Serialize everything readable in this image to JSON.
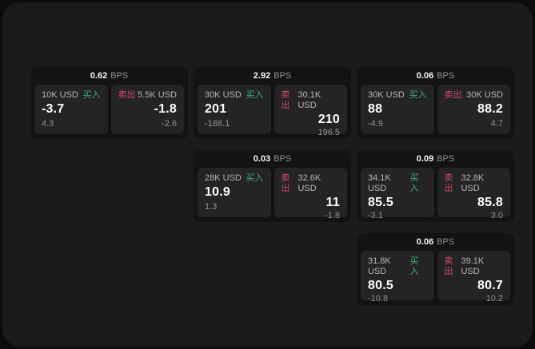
{
  "labels": {
    "buy": "买入",
    "sell": "卖出"
  },
  "colors": {
    "outer_bg": "#0c0c0c",
    "window_bg": "#1b1b1d",
    "card_bg": "#131314",
    "panel_bg": "#242427",
    "buy_green": "#3fae76",
    "sell_red": "#d14b62",
    "value_white": "#f5f5f5",
    "label_gray": "#b5b5b5",
    "sub_gray": "#8f8f8f"
  },
  "cards": [
    {
      "bps": "0.62",
      "unit": "BPS",
      "buy": {
        "amount": "10K USD",
        "value": "-3.7",
        "sub": "4.3"
      },
      "sell": {
        "amount": "5.5K USD",
        "value": "-1.8",
        "sub": "-2.6"
      }
    },
    {
      "bps": "2.92",
      "unit": "BPS",
      "buy": {
        "amount": "30K USD",
        "value": "201",
        "sub": "-188.1"
      },
      "sell": {
        "amount": "30.1K USD",
        "value": "210",
        "sub": "196.5"
      }
    },
    {
      "bps": "0.06",
      "unit": "BPS",
      "buy": {
        "amount": "30K USD",
        "value": "88",
        "sub": "-4.9"
      },
      "sell": {
        "amount": "30K USD",
        "value": "88.2",
        "sub": "4.7"
      }
    },
    {
      "bps": "0.03",
      "unit": "BPS",
      "buy": {
        "amount": "28K USD",
        "value": "10.9",
        "sub": "1.3"
      },
      "sell": {
        "amount": "32.6K USD",
        "value": "11",
        "sub": "-1.8"
      }
    },
    {
      "bps": "0.09",
      "unit": "BPS",
      "buy": {
        "amount": "34.1K USD",
        "value": "85.5",
        "sub": "-3.1"
      },
      "sell": {
        "amount": "32.8K USD",
        "value": "85.8",
        "sub": "3.0"
      }
    },
    {
      "bps": "0.06",
      "unit": "BPS",
      "buy": {
        "amount": "31.8K USD",
        "value": "80.5",
        "sub": "-10.8"
      },
      "sell": {
        "amount": "39.1K USD",
        "value": "80.7",
        "sub": "10.2"
      }
    }
  ]
}
